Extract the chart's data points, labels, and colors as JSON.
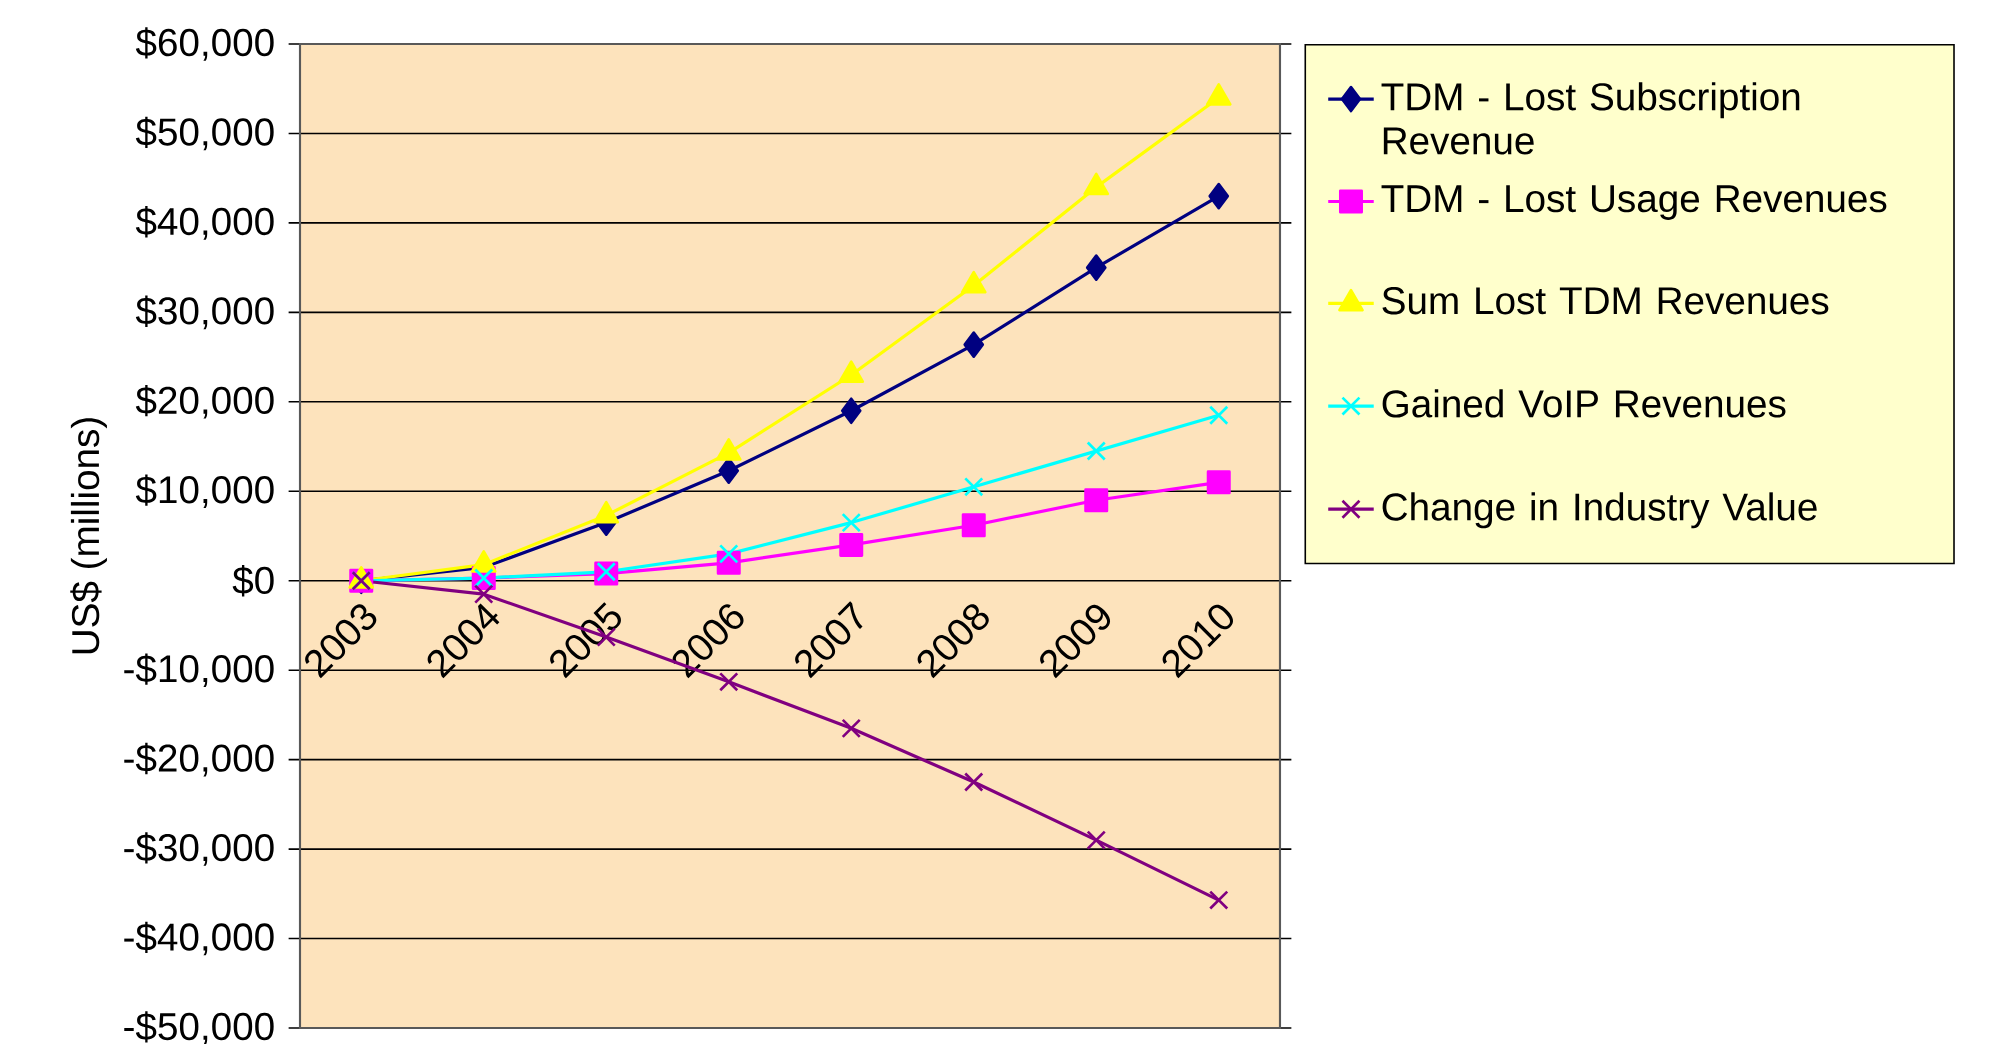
{
  "chart_data": {
    "type": "line",
    "ylabel": "US$ (millions)",
    "categories": [
      "2003",
      "2004",
      "2005",
      "2006",
      "2007",
      "2008",
      "2009",
      "2010"
    ],
    "ylim": [
      -50000,
      60000
    ],
    "yticks": [
      {
        "value": -50000,
        "label": "-$50,000"
      },
      {
        "value": -40000,
        "label": "-$40,000"
      },
      {
        "value": -30000,
        "label": "-$30,000"
      },
      {
        "value": -20000,
        "label": "-$20,000"
      },
      {
        "value": -10000,
        "label": "-$10,000"
      },
      {
        "value": 0,
        "label": "$0"
      },
      {
        "value": 10000,
        "label": "$10,000"
      },
      {
        "value": 20000,
        "label": "$20,000"
      },
      {
        "value": 30000,
        "label": "$30,000"
      },
      {
        "value": 40000,
        "label": "$40,000"
      },
      {
        "value": 50000,
        "label": "$50,000"
      },
      {
        "value": 60000,
        "label": "$60,000"
      }
    ],
    "grid": "y",
    "legend": "right",
    "series": [
      {
        "name": "TDM - Lost Subscription Revenue",
        "color": "#000080",
        "marker": "diamond",
        "values": [
          0,
          1500,
          6500,
          12300,
          19000,
          26400,
          35000,
          43000
        ]
      },
      {
        "name": "TDM - Lost Usage Revenues",
        "color": "#ff00ff",
        "marker": "square",
        "values": [
          0,
          300,
          800,
          2000,
          4000,
          6200,
          9000,
          11000
        ]
      },
      {
        "name": "Sum Lost TDM Revenues",
        "color": "#ffff00",
        "marker": "triangle",
        "values": [
          0,
          1800,
          7300,
          14300,
          23000,
          33000,
          44000,
          54000
        ]
      },
      {
        "name": "Gained VoIP Revenues",
        "color": "#00ffff",
        "marker": "cross",
        "values": [
          0,
          300,
          1000,
          3000,
          6500,
          10500,
          14500,
          18500
        ]
      },
      {
        "name": "Change in Industry Value",
        "color": "#800080",
        "marker": "cross",
        "values": [
          0,
          -1500,
          -6300,
          -11300,
          -16500,
          -22500,
          -29000,
          -35700
        ]
      }
    ]
  }
}
